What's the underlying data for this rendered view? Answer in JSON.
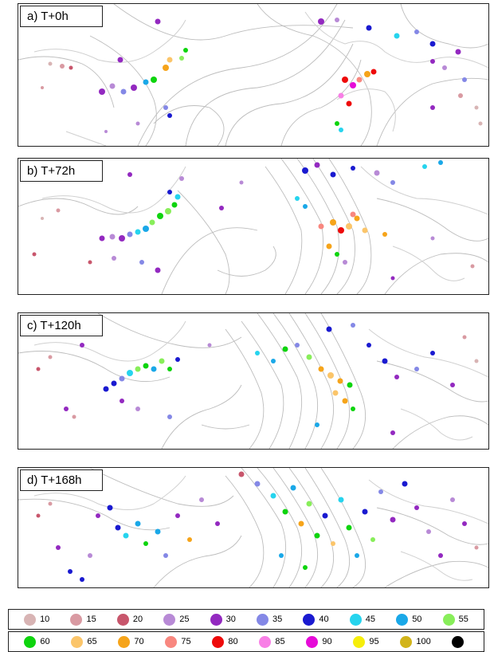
{
  "panels": [
    {
      "label": "a) T+0h"
    },
    {
      "label": "b) T+72h"
    },
    {
      "label": "c) T+120h"
    },
    {
      "label": "d) T+168h"
    }
  ],
  "legend": {
    "row1": [
      {
        "label": "10",
        "color": "#d8b4b4"
      },
      {
        "label": "15",
        "color": "#d99aa2"
      },
      {
        "label": "20",
        "color": "#c8566c"
      },
      {
        "label": "25",
        "color": "#b88ad6"
      },
      {
        "label": "30",
        "color": "#9329c0"
      },
      {
        "label": "35",
        "color": "#8488e6"
      },
      {
        "label": "40",
        "color": "#1a1ad0"
      },
      {
        "label": "45",
        "color": "#26d4ee"
      },
      {
        "label": "50",
        "color": "#1aa8e8"
      },
      {
        "label": "55",
        "color": "#88ee5a"
      }
    ],
    "row2": [
      {
        "label": "60",
        "color": "#0ed40e"
      },
      {
        "label": "65",
        "color": "#fbc56a"
      },
      {
        "label": "70",
        "color": "#f6a41a"
      },
      {
        "label": "75",
        "color": "#f8877f"
      },
      {
        "label": "80",
        "color": "#ee0a0a"
      },
      {
        "label": "85",
        "color": "#f87fe6"
      },
      {
        "label": "90",
        "color": "#e60ad8"
      },
      {
        "label": "95",
        "color": "#f6ee0a"
      },
      {
        "label": "100",
        "color": "#d2b41a"
      },
      {
        "label": "",
        "color": "#000000"
      }
    ]
  },
  "map_style": {
    "contour_color": "#bdbdbd",
    "coast_color": "#d0d0d0"
  }
}
